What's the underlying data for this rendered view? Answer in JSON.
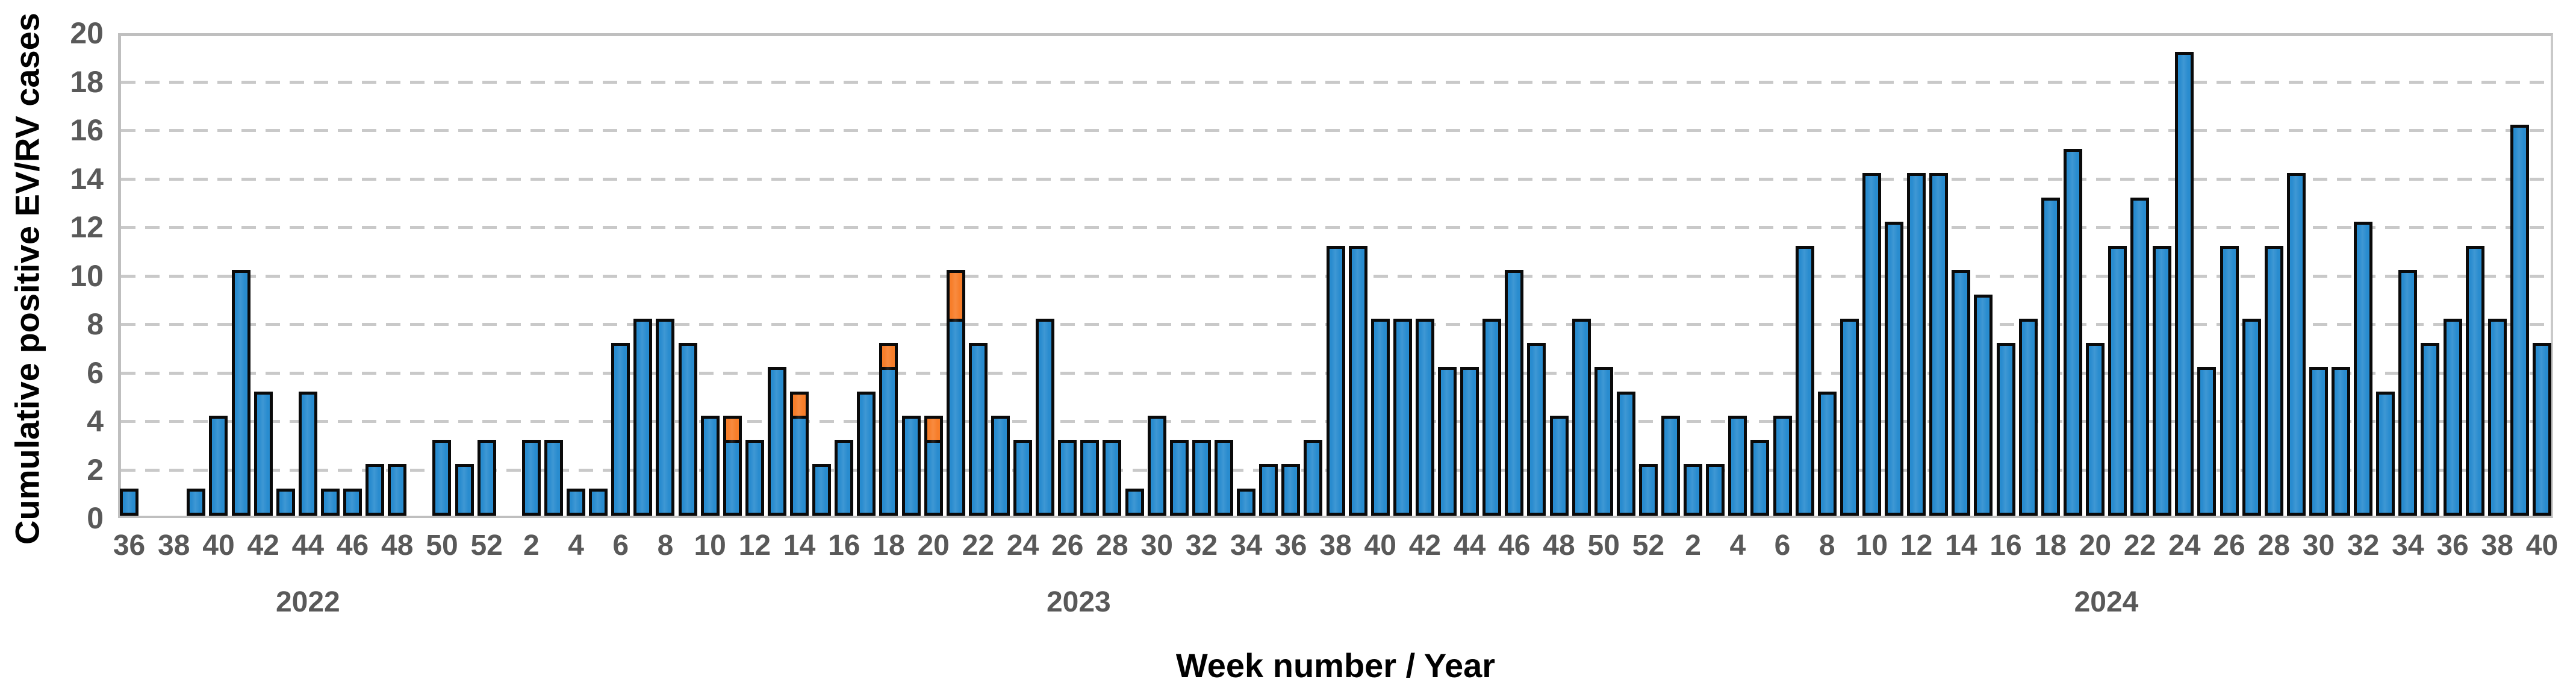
{
  "chart_data": {
    "type": "bar",
    "stacked": true,
    "title": "",
    "xlabel": "Week number / Year",
    "ylabel": "Cumulative positive EV/RV cases",
    "ylim": [
      0,
      20
    ],
    "ytick_step": 2,
    "grid": "horizontal-dashed",
    "legend": "none",
    "series": [
      {
        "name": "blue-cases",
        "color": "#298ccf"
      },
      {
        "name": "orange-cases",
        "color": "#f77e2a"
      }
    ],
    "years": [
      {
        "year": "2022",
        "start_week": 36,
        "weeks": [
          36,
          37,
          38,
          39,
          40,
          41,
          42,
          43,
          44,
          45,
          46,
          47,
          48,
          49,
          50,
          51,
          52
        ],
        "blue": [
          1,
          0,
          0,
          1,
          4,
          10,
          5,
          1,
          5,
          1,
          1,
          2,
          2,
          0,
          3,
          2,
          3
        ],
        "orange": [
          0,
          0,
          0,
          0,
          0,
          0,
          0,
          0,
          0,
          0,
          0,
          0,
          0,
          0,
          0,
          0,
          0
        ]
      },
      {
        "year": "2023",
        "start_week": 1,
        "weeks": [
          1,
          2,
          3,
          4,
          5,
          6,
          7,
          8,
          9,
          10,
          11,
          12,
          13,
          14,
          15,
          16,
          17,
          18,
          19,
          20,
          21,
          22,
          23,
          24,
          25,
          26,
          27,
          28,
          29,
          30,
          31,
          32,
          33,
          34,
          35,
          36,
          37,
          38,
          39,
          40,
          41,
          42,
          43,
          44,
          45,
          46,
          47,
          48,
          49,
          50,
          51,
          52
        ],
        "blue": [
          0,
          3,
          3,
          1,
          1,
          7,
          8,
          8,
          7,
          4,
          3,
          3,
          6,
          4,
          2,
          3,
          5,
          6,
          4,
          3,
          8,
          7,
          4,
          3,
          8,
          3,
          3,
          3,
          1,
          4,
          3,
          3,
          3,
          1,
          2,
          2,
          3,
          11,
          11,
          8,
          8,
          8,
          6,
          6,
          8,
          10,
          7,
          4,
          8,
          6,
          5,
          2
        ],
        "orange": [
          0,
          0,
          0,
          0,
          0,
          0,
          0,
          0,
          0,
          0,
          1,
          0,
          0,
          1,
          0,
          0,
          0,
          1,
          0,
          1,
          2,
          0,
          0,
          0,
          0,
          0,
          0,
          0,
          0,
          0,
          0,
          0,
          0,
          0,
          0,
          0,
          0,
          0,
          0,
          0,
          0,
          0,
          0,
          0,
          0,
          0,
          0,
          0,
          0,
          0,
          0,
          0
        ]
      },
      {
        "year": "2024",
        "start_week": 1,
        "weeks": [
          1,
          2,
          3,
          4,
          5,
          6,
          7,
          8,
          9,
          10,
          11,
          12,
          13,
          14,
          15,
          16,
          17,
          18,
          19,
          20,
          21,
          22,
          23,
          24,
          25,
          26,
          27,
          28,
          29,
          30,
          31,
          32,
          33,
          34,
          35,
          36,
          37,
          38,
          39,
          40
        ],
        "blue": [
          4,
          2,
          2,
          4,
          3,
          4,
          11,
          5,
          8,
          14,
          12,
          14,
          14,
          10,
          9,
          7,
          8,
          13,
          15,
          7,
          11,
          13,
          11,
          19,
          6,
          11,
          8,
          11,
          14,
          6,
          6,
          12,
          5,
          10,
          7,
          8,
          11,
          8,
          16,
          7
        ],
        "orange": [
          0,
          0,
          0,
          0,
          0,
          0,
          0,
          0,
          0,
          0,
          0,
          0,
          0,
          0,
          0,
          0,
          0,
          0,
          0,
          0,
          0,
          0,
          0,
          0,
          0,
          0,
          0,
          0,
          0,
          0,
          0,
          0,
          0,
          0,
          0,
          0,
          0,
          0,
          0,
          0
        ]
      }
    ],
    "y_tick_labels": [
      "0",
      "2",
      "4",
      "6",
      "8",
      "10",
      "12",
      "14",
      "16",
      "18",
      "20"
    ],
    "x_tick_rule": "even week numbers only",
    "year_labels": [
      "2022",
      "2023",
      "2024"
    ]
  },
  "colors": {
    "bar_blue": "#298ccf",
    "bar_orange": "#f77e2a",
    "bar_border": "#0a0a0a",
    "gridline": "#c9c9c9",
    "axis_line": "#bfbfbf",
    "tick_text": "#595959",
    "title_text": "#000000",
    "background": "#ffffff"
  }
}
